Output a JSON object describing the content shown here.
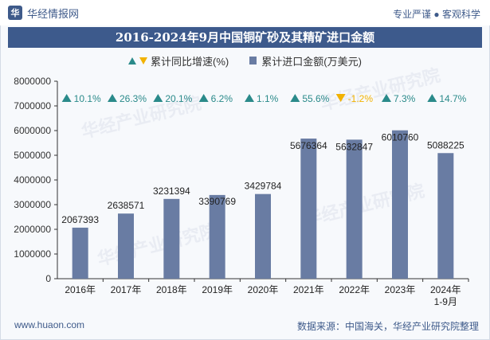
{
  "header": {
    "brand_name": "华经情报网",
    "tagline": "专业严谨 ● 客观科学"
  },
  "watermark": "华经产业研究院",
  "chart_data": {
    "type": "bar",
    "title": "2016-2024年9月中国铜矿砂及其精矿进口金额",
    "categories": [
      "2016年",
      "2017年",
      "2018年",
      "2019年",
      "2020年",
      "2021年",
      "2022年",
      "2023年",
      "2024年\n1-9月"
    ],
    "series": [
      {
        "name": "累计进口金额(万美元)",
        "values": [
          2067393,
          2638571,
          3231394,
          3390769,
          3429784,
          5676364,
          5632847,
          6010760,
          5088225
        ],
        "color": "#697ca3"
      },
      {
        "name": "累计同比增速(%)",
        "values": [
          10.1,
          26.3,
          20.1,
          6.2,
          1.1,
          55.6,
          -1.2,
          7.3,
          14.7
        ],
        "labels": [
          "10.1%",
          "26.3%",
          "20.1%",
          "6.2%",
          "1.1%",
          "55.6%",
          "-1.2%",
          "7.3%",
          "14.7%"
        ],
        "up_color": "#2a8a8a",
        "down_color": "#f2b200"
      }
    ],
    "value_labels": [
      "2067393",
      "2638571",
      "3231394",
      "3390769",
      "3429784",
      "5676364",
      "5632847",
      "6010760",
      "5088225"
    ],
    "ylim": [
      0,
      8000000
    ],
    "yticks": [
      0,
      1000000,
      2000000,
      3000000,
      4000000,
      5000000,
      6000000,
      7000000,
      8000000
    ],
    "ytick_labels": [
      "0",
      "1000000",
      "2000000",
      "3000000",
      "4000000",
      "5000000",
      "6000000",
      "7000000",
      "8000000"
    ],
    "legend_growth_label": "累计同比增速(%)",
    "legend_amount_label": "累计进口金额(万美元)",
    "legend_position": "top-center",
    "grid": false
  },
  "footer": {
    "site": "www.huaon.com",
    "source": "数据来源：中国海关，华经产业研究院整理"
  }
}
